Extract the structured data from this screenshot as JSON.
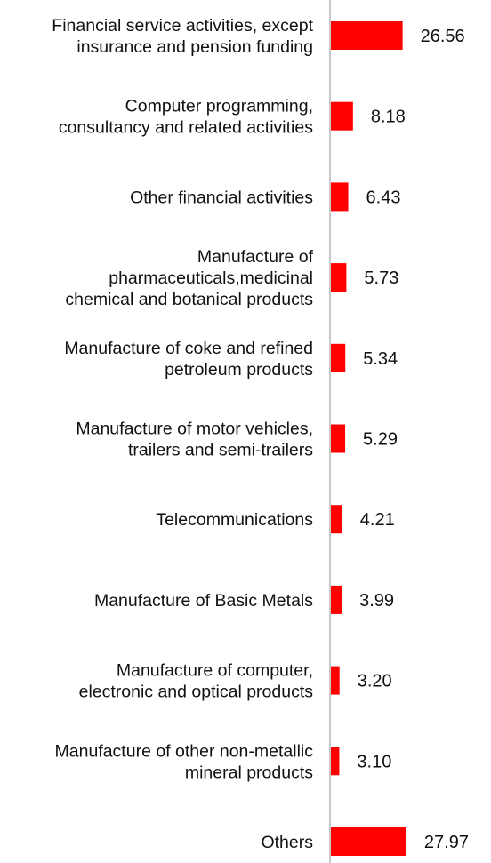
{
  "chart_data": {
    "type": "bar",
    "orientation": "horizontal",
    "title": "",
    "xlabel": "",
    "ylabel": "",
    "grid": false,
    "legend": "none",
    "bar_color": "#ff0000",
    "axis_color": "#c8c8c8",
    "categories": [
      [
        "Financial service activities, except",
        "insurance and pension funding"
      ],
      [
        "Computer programming,",
        "consultancy and related activities"
      ],
      [
        "Other financial activities"
      ],
      [
        "Manufacture of",
        "pharmaceuticals,medicinal",
        "chemical and botanical products"
      ],
      [
        "Manufacture of coke and refined",
        "petroleum products"
      ],
      [
        "Manufacture of motor vehicles,",
        "trailers and semi-trailers"
      ],
      [
        "Telecommunications"
      ],
      [
        "Manufacture of Basic Metals"
      ],
      [
        "Manufacture of computer,",
        "electronic and optical products"
      ],
      [
        "Manufacture of other non-metallic",
        "mineral products"
      ],
      [
        "Others"
      ]
    ],
    "values": [
      26.56,
      8.18,
      6.43,
      5.73,
      5.34,
      5.29,
      4.21,
      3.99,
      3.2,
      3.1,
      27.97
    ],
    "value_labels": [
      "26.56",
      "8.18",
      "6.43",
      "5.73",
      "5.34",
      "5.29",
      "4.21",
      "3.99",
      "3.20",
      "3.10",
      "27.97"
    ],
    "xlim": [
      0,
      30
    ]
  }
}
